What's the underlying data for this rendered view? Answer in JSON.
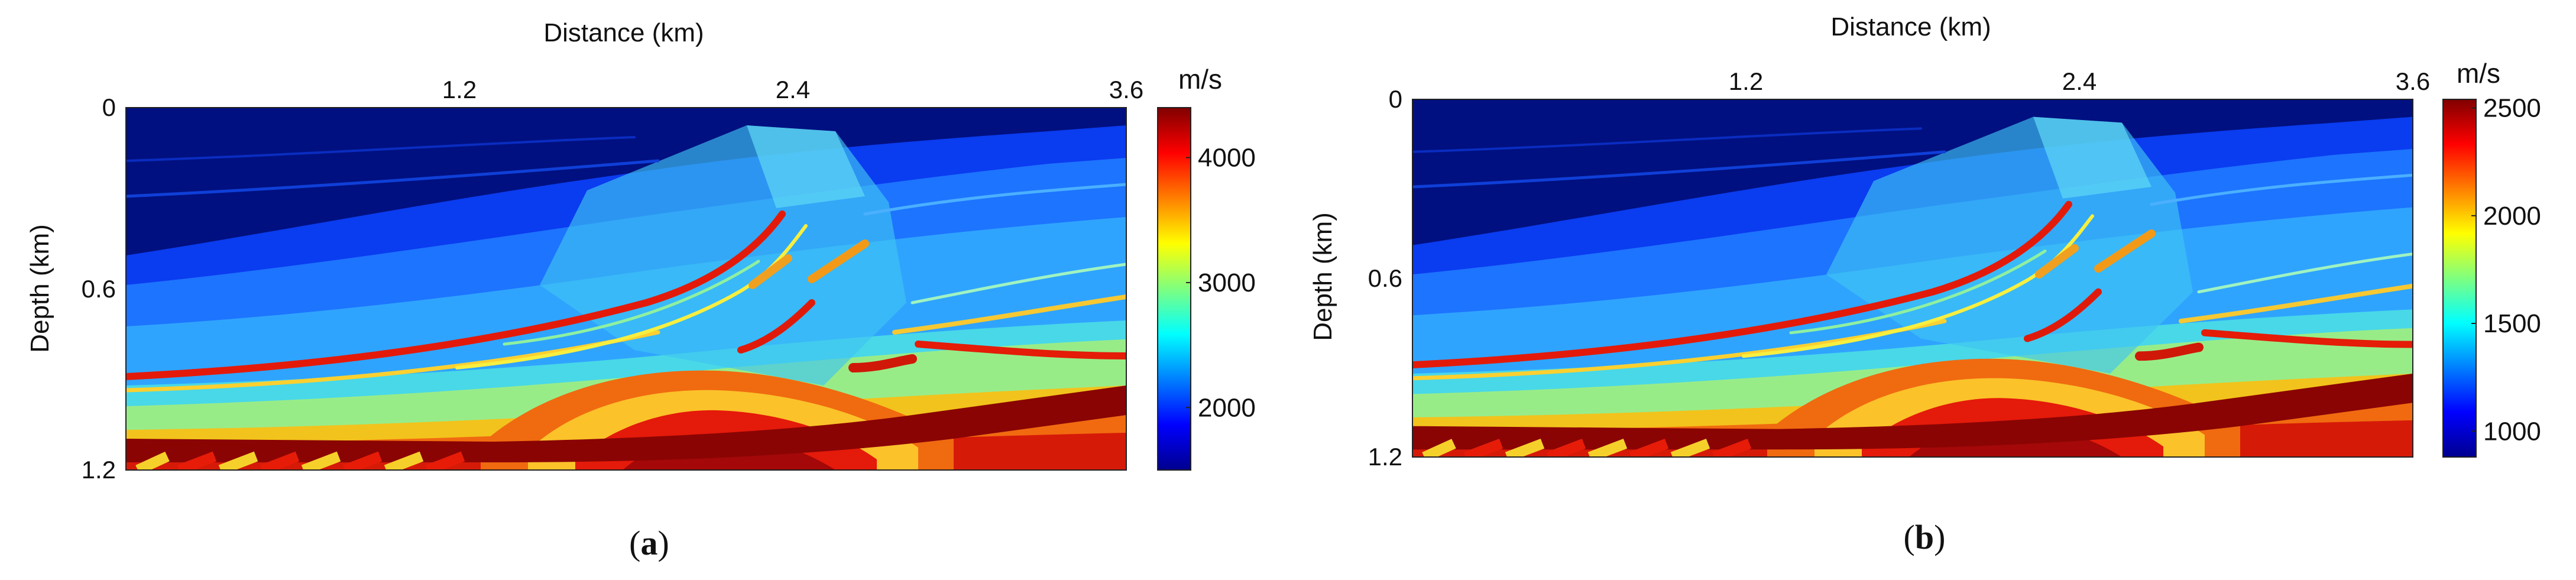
{
  "figure": {
    "colormap": [
      "#00008f",
      "#0000ff",
      "#007fff",
      "#00ffff",
      "#7fff7f",
      "#ffff00",
      "#ff7f00",
      "#ff0000",
      "#800000"
    ]
  },
  "chart_data": [
    {
      "type": "heatmap",
      "title": "",
      "xlabel": "Distance (km)",
      "ylabel": "Depth (km)",
      "xlim": [
        0,
        3.6
      ],
      "ylim": [
        0,
        1.2
      ],
      "x_ticks": [
        "1.2",
        "2.4",
        "3.6"
      ],
      "y_ticks": [
        "0",
        "0.6",
        "1.2"
      ],
      "colorbar": {
        "unit": "m/s",
        "range": [
          1500,
          4400
        ],
        "ticks": [
          "2000",
          "3000",
          "4000"
        ]
      },
      "value_range": [
        1500,
        4400
      ],
      "caption": {
        "open": "(",
        "letter": "a",
        "close": ")"
      }
    },
    {
      "type": "heatmap",
      "title": "",
      "xlabel": "Distance (km)",
      "ylabel": "Depth (km)",
      "xlim": [
        0,
        3.6
      ],
      "ylim": [
        0,
        1.2
      ],
      "x_ticks": [
        "1.2",
        "2.4",
        "3.6"
      ],
      "y_ticks": [
        "0",
        "0.6",
        "1.2"
      ],
      "colorbar": {
        "unit": "m/s",
        "range": [
          880,
          2540
        ],
        "ticks": [
          "1000",
          "1500",
          "2000",
          "2500"
        ]
      },
      "value_range": [
        880,
        2540
      ],
      "caption": {
        "open": "(",
        "letter": "b",
        "close": ")"
      }
    }
  ]
}
